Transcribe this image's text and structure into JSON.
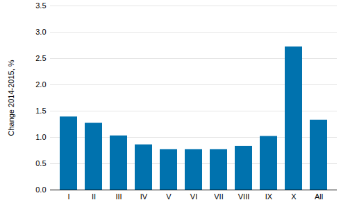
{
  "chart_data": {
    "type": "bar",
    "y_label": "Change 2014-2015, %",
    "categories": [
      "I",
      "II",
      "III",
      "IV",
      "V",
      "VI",
      "VII",
      "VIII",
      "IX",
      "X",
      "All"
    ],
    "values": [
      1.39,
      1.27,
      1.03,
      0.86,
      0.77,
      0.77,
      0.77,
      0.83,
      1.02,
      2.72,
      1.33
    ],
    "color": "#0072ae",
    "ylim": [
      0,
      3.5
    ],
    "yticks": [
      {
        "value": 0,
        "label": "0.0"
      },
      0.5,
      {
        "value": 1,
        "label": "1.0"
      },
      1.5,
      {
        "value": 2,
        "label": "2.0"
      },
      2.5,
      {
        "value": 3,
        "label": "3.0"
      },
      3.5
    ],
    "grid": true
  }
}
